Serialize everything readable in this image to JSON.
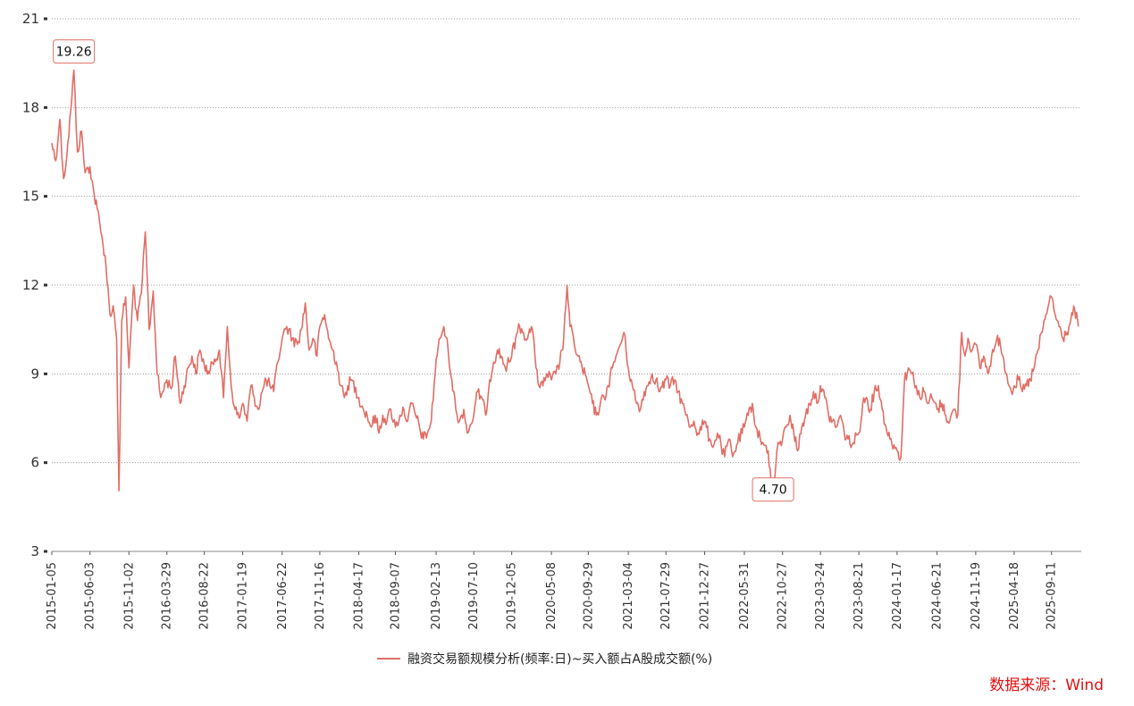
{
  "source_label": "数据来源：Wind",
  "chart_data": {
    "type": "line",
    "title": "",
    "xlabel": "",
    "ylabel": "",
    "ylim": [
      3,
      21
    ],
    "yticks": [
      3,
      6,
      9,
      12,
      15,
      18,
      21
    ],
    "xlim": [
      "2015-01-05",
      "2026-01-05"
    ],
    "x_tick_labels": [
      "2015-01-05",
      "2015-06-03",
      "2015-11-02",
      "2016-03-29",
      "2016-08-22",
      "2017-01-19",
      "2017-06-22",
      "2017-11-16",
      "2018-04-17",
      "2018-09-07",
      "2019-02-13",
      "2019-07-10",
      "2019-12-05",
      "2020-05-08",
      "2020-09-29",
      "2021-03-04",
      "2021-07-29",
      "2021-12-27",
      "2022-05-31",
      "2022-10-27",
      "2023-03-24",
      "2023-08-21",
      "2024-01-17",
      "2024-06-21",
      "2024-11-19",
      "2025-04-18",
      "2025-09-11"
    ],
    "grid": "horizontal-dotted",
    "legend_position": "bottom-center",
    "series": [
      {
        "name": "融资交易额规模分析(频率:日)~买入额占A股成交额(%)",
        "color": "#e06e66",
        "points": [
          [
            "2015-01-05",
            16.8
          ],
          [
            "2015-01-20",
            16.2
          ],
          [
            "2015-02-05",
            17.6
          ],
          [
            "2015-02-20",
            15.6
          ],
          [
            "2015-03-05",
            16.4
          ],
          [
            "2015-03-20",
            17.9
          ],
          [
            "2015-04-01",
            19.26
          ],
          [
            "2015-04-15",
            16.5
          ],
          [
            "2015-05-01",
            17.2
          ],
          [
            "2015-05-15",
            15.8
          ],
          [
            "2015-06-03",
            16.0
          ],
          [
            "2015-06-20",
            15.0
          ],
          [
            "2015-07-01",
            14.6
          ],
          [
            "2015-07-15",
            13.8
          ],
          [
            "2015-08-01",
            13.0
          ],
          [
            "2015-08-20",
            11.0
          ],
          [
            "2015-09-01",
            11.3
          ],
          [
            "2015-09-15",
            10.2
          ],
          [
            "2015-09-24",
            5.05
          ],
          [
            "2015-10-05",
            10.8
          ],
          [
            "2015-10-20",
            11.6
          ],
          [
            "2015-11-02",
            9.2
          ],
          [
            "2015-11-20",
            12.0
          ],
          [
            "2015-12-05",
            10.8
          ],
          [
            "2015-12-20",
            11.7
          ],
          [
            "2016-01-05",
            13.8
          ],
          [
            "2016-01-20",
            10.5
          ],
          [
            "2016-02-05",
            11.8
          ],
          [
            "2016-02-20",
            9.0
          ],
          [
            "2016-03-05",
            8.2
          ],
          [
            "2016-03-29",
            8.8
          ],
          [
            "2016-04-15",
            8.5
          ],
          [
            "2016-05-01",
            9.6
          ],
          [
            "2016-05-20",
            8.0
          ],
          [
            "2016-06-05",
            8.6
          ],
          [
            "2016-06-20",
            9.2
          ],
          [
            "2016-07-05",
            9.6
          ],
          [
            "2016-07-20",
            9.0
          ],
          [
            "2016-08-05",
            9.8
          ],
          [
            "2016-08-22",
            9.3
          ],
          [
            "2016-09-10",
            9.0
          ],
          [
            "2016-10-01",
            9.5
          ],
          [
            "2016-10-20",
            9.8
          ],
          [
            "2016-11-05",
            8.2
          ],
          [
            "2016-11-20",
            10.6
          ],
          [
            "2016-12-05",
            8.6
          ],
          [
            "2016-12-20",
            7.8
          ],
          [
            "2017-01-05",
            7.5
          ],
          [
            "2017-01-19",
            8.0
          ],
          [
            "2017-02-05",
            7.4
          ],
          [
            "2017-02-20",
            8.6
          ],
          [
            "2017-03-05",
            8.2
          ],
          [
            "2017-03-20",
            7.8
          ],
          [
            "2017-04-05",
            8.4
          ],
          [
            "2017-04-20",
            8.8
          ],
          [
            "2017-05-05",
            8.6
          ],
          [
            "2017-05-20",
            8.4
          ],
          [
            "2017-06-05",
            9.4
          ],
          [
            "2017-06-22",
            10.2
          ],
          [
            "2017-07-10",
            10.6
          ],
          [
            "2017-08-01",
            10.2
          ],
          [
            "2017-08-20",
            10.0
          ],
          [
            "2017-09-05",
            10.5
          ],
          [
            "2017-09-20",
            11.4
          ],
          [
            "2017-10-05",
            9.8
          ],
          [
            "2017-10-20",
            10.2
          ],
          [
            "2017-11-05",
            9.6
          ],
          [
            "2017-11-16",
            10.6
          ],
          [
            "2017-12-05",
            11.0
          ],
          [
            "2017-12-20",
            10.2
          ],
          [
            "2018-01-05",
            9.8
          ],
          [
            "2018-01-20",
            9.4
          ],
          [
            "2018-02-05",
            8.6
          ],
          [
            "2018-02-20",
            8.2
          ],
          [
            "2018-03-05",
            8.6
          ],
          [
            "2018-03-20",
            8.8
          ],
          [
            "2018-04-17",
            8.2
          ],
          [
            "2018-05-05",
            7.8
          ],
          [
            "2018-05-20",
            7.6
          ],
          [
            "2018-06-05",
            7.2
          ],
          [
            "2018-06-20",
            7.6
          ],
          [
            "2018-07-05",
            7.0
          ],
          [
            "2018-07-20",
            7.6
          ],
          [
            "2018-08-05",
            7.4
          ],
          [
            "2018-08-20",
            7.8
          ],
          [
            "2018-09-07",
            7.2
          ],
          [
            "2018-09-25",
            7.6
          ],
          [
            "2018-10-10",
            7.8
          ],
          [
            "2018-10-25",
            7.4
          ],
          [
            "2018-11-10",
            8.0
          ],
          [
            "2018-11-25",
            7.6
          ],
          [
            "2018-12-10",
            7.2
          ],
          [
            "2018-12-25",
            6.8
          ],
          [
            "2019-01-10",
            7.0
          ],
          [
            "2019-01-25",
            7.4
          ],
          [
            "2019-02-13",
            9.5
          ],
          [
            "2019-03-01",
            10.2
          ],
          [
            "2019-03-15",
            10.6
          ],
          [
            "2019-04-01",
            9.8
          ],
          [
            "2019-04-15",
            8.8
          ],
          [
            "2019-05-01",
            7.8
          ],
          [
            "2019-05-15",
            7.4
          ],
          [
            "2019-06-01",
            7.8
          ],
          [
            "2019-06-15",
            7.0
          ],
          [
            "2019-07-10",
            7.6
          ],
          [
            "2019-07-25",
            8.4
          ],
          [
            "2019-08-10",
            8.2
          ],
          [
            "2019-08-25",
            7.6
          ],
          [
            "2019-09-10",
            8.8
          ],
          [
            "2019-09-25",
            9.4
          ],
          [
            "2019-10-10",
            9.8
          ],
          [
            "2019-10-25",
            9.6
          ],
          [
            "2019-11-10",
            9.2
          ],
          [
            "2019-11-25",
            9.4
          ],
          [
            "2019-12-05",
            9.6
          ],
          [
            "2019-12-20",
            10.2
          ],
          [
            "2020-01-05",
            10.6
          ],
          [
            "2020-01-20",
            10.4
          ],
          [
            "2020-02-05",
            10.2
          ],
          [
            "2020-02-20",
            10.6
          ],
          [
            "2020-03-05",
            9.6
          ],
          [
            "2020-03-20",
            8.6
          ],
          [
            "2020-04-05",
            8.6
          ],
          [
            "2020-04-20",
            9.0
          ],
          [
            "2020-05-08",
            8.8
          ],
          [
            "2020-05-25",
            9.0
          ],
          [
            "2020-06-10",
            9.4
          ],
          [
            "2020-06-25",
            10.2
          ],
          [
            "2020-07-08",
            12.0
          ],
          [
            "2020-07-20",
            10.6
          ],
          [
            "2020-08-05",
            10.0
          ],
          [
            "2020-08-20",
            9.6
          ],
          [
            "2020-09-05",
            9.2
          ],
          [
            "2020-09-29",
            8.6
          ],
          [
            "2020-10-15",
            8.0
          ],
          [
            "2020-10-30",
            7.6
          ],
          [
            "2020-11-15",
            8.0
          ],
          [
            "2020-11-30",
            8.2
          ],
          [
            "2020-12-15",
            8.6
          ],
          [
            "2021-01-01",
            9.2
          ],
          [
            "2021-01-15",
            9.6
          ],
          [
            "2021-02-01",
            10.0
          ],
          [
            "2021-02-15",
            10.4
          ],
          [
            "2021-03-04",
            9.2
          ],
          [
            "2021-03-20",
            8.6
          ],
          [
            "2021-04-05",
            8.0
          ],
          [
            "2021-04-20",
            7.8
          ],
          [
            "2021-05-05",
            8.4
          ],
          [
            "2021-05-20",
            8.6
          ],
          [
            "2021-06-05",
            9.0
          ],
          [
            "2021-06-20",
            8.8
          ],
          [
            "2021-07-05",
            8.4
          ],
          [
            "2021-07-29",
            8.8
          ],
          [
            "2021-08-15",
            8.6
          ],
          [
            "2021-09-01",
            8.8
          ],
          [
            "2021-09-15",
            8.4
          ],
          [
            "2021-10-01",
            8.0
          ],
          [
            "2021-10-15",
            7.6
          ],
          [
            "2021-11-01",
            7.2
          ],
          [
            "2021-11-15",
            7.4
          ],
          [
            "2021-12-01",
            7.0
          ],
          [
            "2021-12-27",
            7.4
          ],
          [
            "2022-01-15",
            6.8
          ],
          [
            "2022-02-01",
            6.6
          ],
          [
            "2022-02-15",
            7.0
          ],
          [
            "2022-03-01",
            6.6
          ],
          [
            "2022-03-15",
            6.2
          ],
          [
            "2022-04-01",
            6.8
          ],
          [
            "2022-04-15",
            6.2
          ],
          [
            "2022-05-01",
            6.6
          ],
          [
            "2022-05-31",
            7.2
          ],
          [
            "2022-06-15",
            7.6
          ],
          [
            "2022-07-01",
            8.0
          ],
          [
            "2022-07-15",
            7.2
          ],
          [
            "2022-08-01",
            6.8
          ],
          [
            "2022-08-15",
            6.6
          ],
          [
            "2022-09-01",
            6.4
          ],
          [
            "2022-09-20",
            4.7
          ],
          [
            "2022-10-05",
            6.4
          ],
          [
            "2022-10-27",
            6.8
          ],
          [
            "2022-11-10",
            7.2
          ],
          [
            "2022-11-25",
            7.6
          ],
          [
            "2022-12-10",
            7.0
          ],
          [
            "2022-12-25",
            6.4
          ],
          [
            "2023-01-10",
            7.2
          ],
          [
            "2023-01-25",
            7.6
          ],
          [
            "2023-02-10",
            8.0
          ],
          [
            "2023-02-25",
            8.4
          ],
          [
            "2023-03-10",
            8.0
          ],
          [
            "2023-03-24",
            8.6
          ],
          [
            "2023-04-10",
            8.2
          ],
          [
            "2023-04-25",
            7.6
          ],
          [
            "2023-05-10",
            7.4
          ],
          [
            "2023-05-25",
            7.2
          ],
          [
            "2023-06-10",
            7.6
          ],
          [
            "2023-06-25",
            7.0
          ],
          [
            "2023-07-10",
            6.8
          ],
          [
            "2023-07-25",
            6.6
          ],
          [
            "2023-08-21",
            7.0
          ],
          [
            "2023-09-05",
            8.0
          ],
          [
            "2023-09-20",
            8.2
          ],
          [
            "2023-10-05",
            7.8
          ],
          [
            "2023-10-20",
            8.4
          ],
          [
            "2023-11-05",
            8.6
          ],
          [
            "2023-11-20",
            7.8
          ],
          [
            "2023-12-05",
            7.2
          ],
          [
            "2023-12-20",
            6.8
          ],
          [
            "2024-01-05",
            6.6
          ],
          [
            "2024-01-17",
            6.4
          ],
          [
            "2024-02-01",
            6.2
          ],
          [
            "2024-02-15",
            8.8
          ],
          [
            "2024-03-01",
            9.2
          ],
          [
            "2024-03-15",
            9.0
          ],
          [
            "2024-04-01",
            8.6
          ],
          [
            "2024-04-15",
            8.2
          ],
          [
            "2024-05-01",
            8.4
          ],
          [
            "2024-05-15",
            8.0
          ],
          [
            "2024-06-01",
            8.2
          ],
          [
            "2024-06-21",
            7.8
          ],
          [
            "2024-07-10",
            8.0
          ],
          [
            "2024-07-25",
            7.6
          ],
          [
            "2024-08-10",
            7.4
          ],
          [
            "2024-08-25",
            7.8
          ],
          [
            "2024-09-10",
            7.6
          ],
          [
            "2024-09-25",
            10.4
          ],
          [
            "2024-10-08",
            9.6
          ],
          [
            "2024-10-20",
            10.2
          ],
          [
            "2024-11-05",
            9.8
          ],
          [
            "2024-11-19",
            10.0
          ],
          [
            "2024-12-05",
            9.2
          ],
          [
            "2024-12-20",
            9.6
          ],
          [
            "2025-01-05",
            9.0
          ],
          [
            "2025-01-20",
            9.6
          ],
          [
            "2025-02-05",
            10.0
          ],
          [
            "2025-02-20",
            10.2
          ],
          [
            "2025-03-05",
            9.6
          ],
          [
            "2025-03-20",
            9.0
          ],
          [
            "2025-04-07",
            8.4
          ],
          [
            "2025-04-18",
            8.6
          ],
          [
            "2025-05-05",
            8.8
          ],
          [
            "2025-05-20",
            8.4
          ],
          [
            "2025-06-05",
            8.6
          ],
          [
            "2025-06-20",
            8.8
          ],
          [
            "2025-07-05",
            9.2
          ],
          [
            "2025-07-20",
            9.8
          ],
          [
            "2025-08-05",
            10.4
          ],
          [
            "2025-08-20",
            11.0
          ],
          [
            "2025-09-01",
            11.4
          ],
          [
            "2025-09-11",
            11.6
          ],
          [
            "2025-09-25",
            11.0
          ],
          [
            "2025-10-10",
            10.6
          ],
          [
            "2025-10-25",
            10.2
          ],
          [
            "2025-11-10",
            10.4
          ],
          [
            "2025-11-25",
            10.8
          ],
          [
            "2025-12-10",
            11.2
          ],
          [
            "2025-12-25",
            10.6
          ]
        ]
      }
    ],
    "annotations": [
      {
        "x": "2015-04-01",
        "y": 19.26,
        "label": "19.26"
      },
      {
        "x": "2022-09-20",
        "y": 4.7,
        "label": "4.70"
      }
    ]
  }
}
